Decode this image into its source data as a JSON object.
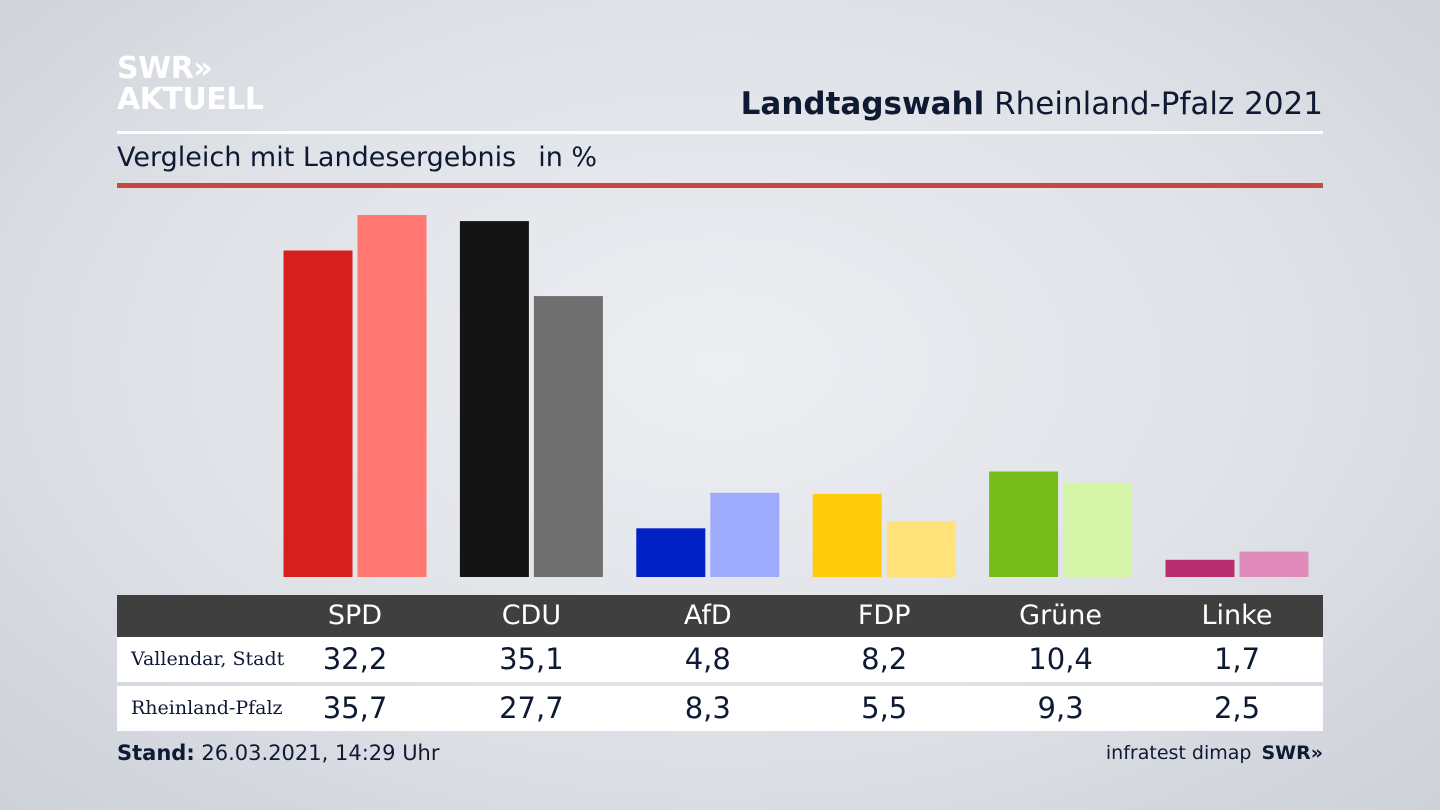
{
  "logo": {
    "line1": "SWR»",
    "line2": "AKTUELL"
  },
  "header": {
    "title_bold": "Landtagswahl",
    "title_rest": "Rheinland-Pfalz 2021"
  },
  "subtitle": {
    "text": "Vergleich mit Landesergebnis",
    "unit": "in %"
  },
  "chart_data": {
    "type": "bar",
    "title": "Landtagswahl Rheinland-Pfalz 2021",
    "subtitle": "Vergleich mit Landesergebnis in %",
    "categories": [
      "SPD",
      "CDU",
      "AfD",
      "FDP",
      "Grüne",
      "Linke"
    ],
    "series": [
      {
        "name": "Vallendar, Stadt",
        "values": [
          32.2,
          35.1,
          4.8,
          8.2,
          10.4,
          1.7
        ],
        "labels": [
          "32,2",
          "35,1",
          "4,8",
          "8,2",
          "10,4",
          "1,7"
        ],
        "colors": [
          "#d71f1f",
          "#141414",
          "#0021c6",
          "#ffcc0a",
          "#78bc1c",
          "#b82e6f"
        ]
      },
      {
        "name": "Rheinland-Pfalz",
        "values": [
          35.7,
          27.7,
          8.3,
          5.5,
          9.3,
          2.5
        ],
        "labels": [
          "35,7",
          "27,7",
          "8,3",
          "5,5",
          "9,3",
          "2,5"
        ],
        "colors": [
          "#ff7770",
          "#706f6f",
          "#9eabfc",
          "#ffe27a",
          "#d5f5a8",
          "#e08bb9"
        ]
      }
    ],
    "ylim": [
      0,
      36
    ],
    "grid": false,
    "legend": "table-below"
  },
  "footer": {
    "stand_label": "Stand:",
    "stand_value": "26.03.2021, 14:29 Uhr"
  },
  "credits": {
    "source": "infratest dimap",
    "brand": "SWR»"
  }
}
